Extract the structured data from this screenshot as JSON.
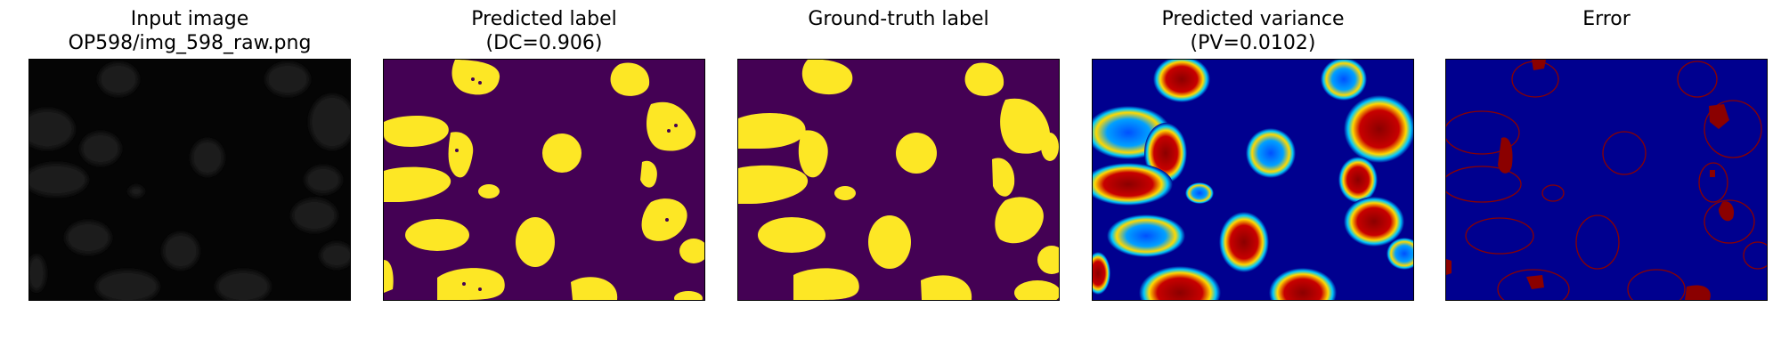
{
  "figure": {
    "panels": [
      {
        "id": "input",
        "title_line1": "Input image",
        "title_line2": "OP598/img_598_raw.png"
      },
      {
        "id": "pred",
        "title_line1": "Predicted label",
        "title_line2": "(DC=0.906)"
      },
      {
        "id": "gt",
        "title_line1": "",
        "title_line2": "Ground-truth label"
      },
      {
        "id": "var",
        "title_line1": "Predicted variance",
        "title_line2": "(PV=0.0102)"
      },
      {
        "id": "error",
        "title_line1": "",
        "title_line2": "Error"
      }
    ]
  },
  "colors": {
    "viridis_bg": "#440154",
    "viridis_fg": "#fde725",
    "jet_bg": "#00008f",
    "jet_hot": "#8b0000",
    "jet_cyan": "#00c8ff",
    "jet_yellow": "#ffd800",
    "raw_bg": "#050505",
    "raw_cell": "#262626"
  }
}
